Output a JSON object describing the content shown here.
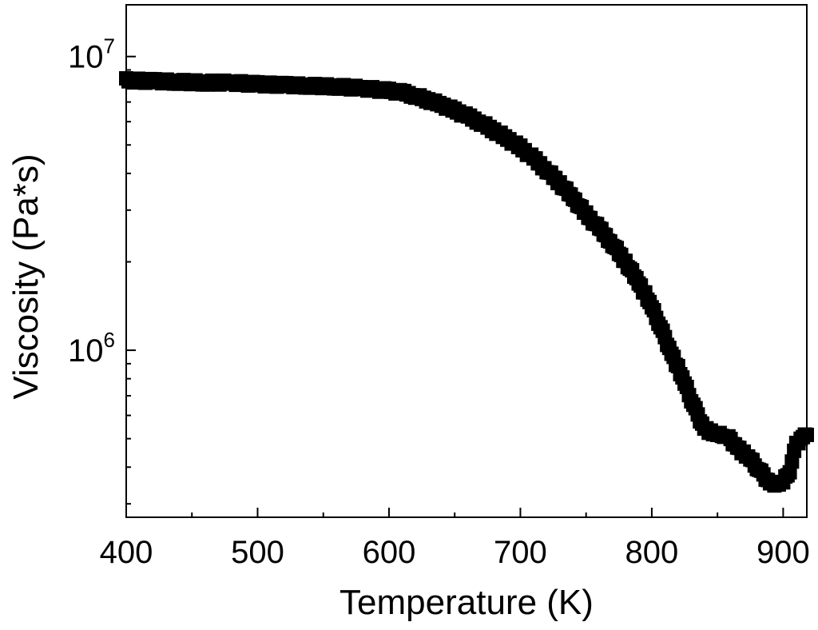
{
  "chart_data": {
    "type": "scatter",
    "title": "",
    "xlabel": "Temperature (K)",
    "ylabel": "Viscosity (Pa*s)",
    "x_scale": "linear",
    "y_scale": "log",
    "xlim": [
      400,
      918
    ],
    "ylim": [
      270000,
      15000000
    ],
    "x_ticks": [
      {
        "value": 400,
        "label": "400"
      },
      {
        "value": 500,
        "label": "500"
      },
      {
        "value": 600,
        "label": "600"
      },
      {
        "value": 700,
        "label": "700"
      },
      {
        "value": 800,
        "label": "800"
      },
      {
        "value": 900,
        "label": "900"
      }
    ],
    "y_ticks": [
      {
        "value": 1000000,
        "base": "10",
        "exp": "6"
      },
      {
        "value": 10000000,
        "base": "10",
        "exp": "7"
      }
    ],
    "grid": false,
    "legend": "none",
    "marker_color": "#000000",
    "marker": "square",
    "series": [
      {
        "points": [
          [
            400,
            8300000
          ],
          [
            420,
            8250000
          ],
          [
            440,
            8200000
          ],
          [
            460,
            8150000
          ],
          [
            480,
            8150000
          ],
          [
            500,
            8050000
          ],
          [
            520,
            8000000
          ],
          [
            540,
            7950000
          ],
          [
            560,
            7900000
          ],
          [
            580,
            7800000
          ],
          [
            600,
            7650000
          ],
          [
            610,
            7550000
          ],
          [
            620,
            7350000
          ],
          [
            630,
            7100000
          ],
          [
            640,
            6850000
          ],
          [
            650,
            6550000
          ],
          [
            660,
            6250000
          ],
          [
            670,
            5950000
          ],
          [
            680,
            5600000
          ],
          [
            690,
            5250000
          ],
          [
            700,
            4900000
          ],
          [
            710,
            4500000
          ],
          [
            720,
            4100000
          ],
          [
            730,
            3700000
          ],
          [
            740,
            3300000
          ],
          [
            750,
            2900000
          ],
          [
            760,
            2600000
          ],
          [
            770,
            2300000
          ],
          [
            780,
            2000000
          ],
          [
            790,
            1700000
          ],
          [
            795,
            1550000
          ],
          [
            800,
            1400000
          ],
          [
            805,
            1250000
          ],
          [
            810,
            1100000
          ],
          [
            815,
            980000
          ],
          [
            820,
            870000
          ],
          [
            825,
            770000
          ],
          [
            830,
            680000
          ],
          [
            835,
            600000
          ],
          [
            840,
            545000
          ],
          [
            845,
            525000
          ],
          [
            850,
            515000
          ],
          [
            855,
            515000
          ],
          [
            860,
            495000
          ],
          [
            865,
            470000
          ],
          [
            870,
            445000
          ],
          [
            875,
            425000
          ],
          [
            880,
            400000
          ],
          [
            885,
            375000
          ],
          [
            890,
            355000
          ],
          [
            895,
            350000
          ],
          [
            900,
            355000
          ],
          [
            905,
            390000
          ],
          [
            910,
            480000
          ],
          [
            915,
            510000
          ],
          [
            918,
            515000
          ]
        ]
      }
    ]
  }
}
